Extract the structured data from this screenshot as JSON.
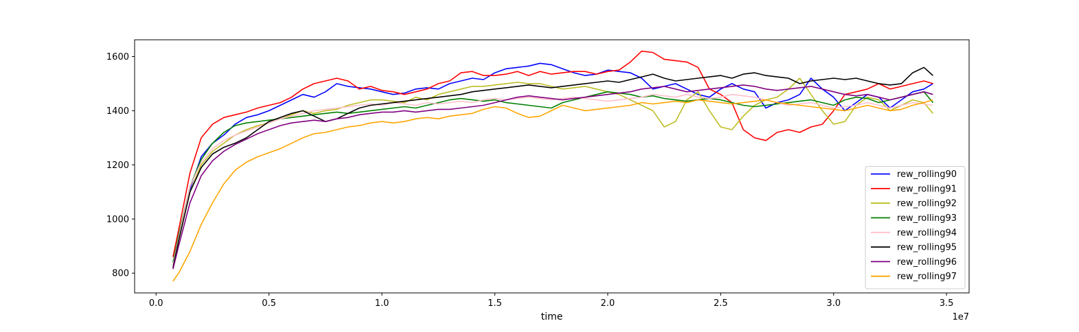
{
  "chart_data": {
    "type": "line",
    "xlabel": "time",
    "ylabel": "",
    "x_offset_label": "1e7",
    "x_scale": 10000000,
    "xlim": [
      -0.095,
      3.6
    ],
    "ylim": [
      727,
      1662
    ],
    "x_ticks": [
      0.0,
      0.5,
      1.0,
      1.5,
      2.0,
      2.5,
      3.0,
      3.5
    ],
    "x_tick_labels": [
      "0.0",
      "0.5",
      "1.0",
      "1.5",
      "2.0",
      "2.5",
      "3.0",
      "3.5"
    ],
    "y_ticks": [
      800,
      1000,
      1200,
      1400,
      1600
    ],
    "y_tick_labels": [
      "800",
      "1000",
      "1200",
      "1400",
      "1600"
    ],
    "grid": false,
    "legend_position": "lower-right",
    "series": [
      {
        "name": "rew_rolling90",
        "color": "#0000ff",
        "x": [
          0.075,
          0.1,
          0.15,
          0.2,
          0.25,
          0.3,
          0.35,
          0.4,
          0.45,
          0.5,
          0.55,
          0.6,
          0.65,
          0.7,
          0.75,
          0.8,
          0.85,
          0.9,
          0.95,
          1.0,
          1.05,
          1.1,
          1.15,
          1.2,
          1.25,
          1.3,
          1.35,
          1.4,
          1.45,
          1.5,
          1.55,
          1.6,
          1.65,
          1.7,
          1.75,
          1.8,
          1.85,
          1.9,
          1.95,
          2.0,
          2.05,
          2.1,
          2.15,
          2.2,
          2.25,
          2.3,
          2.35,
          2.4,
          2.45,
          2.5,
          2.55,
          2.6,
          2.65,
          2.7,
          2.75,
          2.8,
          2.85,
          2.9,
          2.95,
          3.0,
          3.05,
          3.1,
          3.15,
          3.2,
          3.25,
          3.3,
          3.35,
          3.4,
          3.44
        ],
        "y": [
          830,
          930,
          1110,
          1230,
          1280,
          1310,
          1350,
          1375,
          1385,
          1400,
          1420,
          1440,
          1460,
          1450,
          1470,
          1500,
          1490,
          1485,
          1480,
          1470,
          1460,
          1465,
          1480,
          1485,
          1480,
          1500,
          1510,
          1520,
          1515,
          1540,
          1555,
          1560,
          1565,
          1575,
          1570,
          1555,
          1540,
          1530,
          1535,
          1550,
          1545,
          1540,
          1520,
          1480,
          1490,
          1500,
          1480,
          1460,
          1450,
          1480,
          1500,
          1480,
          1470,
          1410,
          1430,
          1440,
          1460,
          1520,
          1480,
          1450,
          1400,
          1430,
          1460,
          1450,
          1410,
          1440,
          1470,
          1480,
          1500
        ]
      },
      {
        "name": "rew_rolling91",
        "color": "#ff0000",
        "x": [
          0.075,
          0.1,
          0.15,
          0.2,
          0.25,
          0.3,
          0.35,
          0.4,
          0.45,
          0.5,
          0.55,
          0.6,
          0.65,
          0.7,
          0.75,
          0.8,
          0.85,
          0.9,
          0.95,
          1.0,
          1.05,
          1.1,
          1.15,
          1.2,
          1.25,
          1.3,
          1.35,
          1.4,
          1.45,
          1.5,
          1.55,
          1.6,
          1.65,
          1.7,
          1.75,
          1.8,
          1.85,
          1.9,
          1.95,
          2.0,
          2.05,
          2.1,
          2.15,
          2.2,
          2.25,
          2.3,
          2.35,
          2.4,
          2.45,
          2.5,
          2.55,
          2.6,
          2.65,
          2.7,
          2.75,
          2.8,
          2.85,
          2.9,
          2.95,
          3.0,
          3.05,
          3.1,
          3.15,
          3.2,
          3.25,
          3.3,
          3.35,
          3.4,
          3.44
        ],
        "y": [
          860,
          960,
          1170,
          1300,
          1350,
          1375,
          1385,
          1395,
          1410,
          1420,
          1430,
          1450,
          1480,
          1500,
          1510,
          1520,
          1510,
          1480,
          1490,
          1475,
          1470,
          1460,
          1470,
          1480,
          1500,
          1510,
          1540,
          1545,
          1530,
          1530,
          1535,
          1545,
          1530,
          1545,
          1535,
          1540,
          1545,
          1545,
          1535,
          1545,
          1550,
          1580,
          1620,
          1615,
          1590,
          1585,
          1580,
          1560,
          1480,
          1460,
          1430,
          1330,
          1300,
          1290,
          1320,
          1330,
          1320,
          1340,
          1350,
          1400,
          1460,
          1470,
          1480,
          1500,
          1480,
          1490,
          1500,
          1510,
          1500
        ]
      },
      {
        "name": "rew_rolling92",
        "color": "#bcbd22",
        "x": [
          0.075,
          0.1,
          0.15,
          0.2,
          0.25,
          0.3,
          0.35,
          0.4,
          0.45,
          0.5,
          0.55,
          0.6,
          0.65,
          0.7,
          0.75,
          0.8,
          0.85,
          0.9,
          0.95,
          1.0,
          1.05,
          1.1,
          1.15,
          1.2,
          1.25,
          1.3,
          1.35,
          1.4,
          1.45,
          1.5,
          1.55,
          1.6,
          1.65,
          1.7,
          1.75,
          1.8,
          1.85,
          1.9,
          1.95,
          2.0,
          2.05,
          2.1,
          2.15,
          2.2,
          2.25,
          2.3,
          2.35,
          2.4,
          2.45,
          2.5,
          2.55,
          2.6,
          2.65,
          2.7,
          2.75,
          2.8,
          2.85,
          2.9,
          2.95,
          3.0,
          3.05,
          3.1,
          3.15,
          3.2,
          3.25,
          3.3,
          3.35,
          3.4,
          3.44
        ],
        "y": [
          830,
          920,
          1100,
          1200,
          1250,
          1280,
          1310,
          1330,
          1345,
          1355,
          1370,
          1385,
          1400,
          1390,
          1400,
          1405,
          1420,
          1430,
          1440,
          1440,
          1435,
          1430,
          1450,
          1440,
          1460,
          1470,
          1480,
          1490,
          1490,
          1495,
          1500,
          1505,
          1500,
          1500,
          1490,
          1480,
          1485,
          1490,
          1480,
          1470,
          1460,
          1440,
          1420,
          1400,
          1340,
          1360,
          1440,
          1470,
          1400,
          1340,
          1330,
          1380,
          1420,
          1440,
          1450,
          1480,
          1520,
          1460,
          1400,
          1350,
          1360,
          1420,
          1450,
          1440,
          1400,
          1420,
          1440,
          1430,
          1390
        ]
      },
      {
        "name": "rew_rolling93",
        "color": "#008000",
        "x": [
          0.075,
          0.1,
          0.15,
          0.2,
          0.25,
          0.3,
          0.35,
          0.4,
          0.45,
          0.5,
          0.55,
          0.6,
          0.65,
          0.7,
          0.75,
          0.8,
          0.85,
          0.9,
          0.95,
          1.0,
          1.05,
          1.1,
          1.15,
          1.2,
          1.25,
          1.3,
          1.35,
          1.4,
          1.45,
          1.5,
          1.55,
          1.6,
          1.65,
          1.7,
          1.75,
          1.8,
          1.85,
          1.9,
          1.95,
          2.0,
          2.05,
          2.1,
          2.15,
          2.2,
          2.25,
          2.3,
          2.35,
          2.4,
          2.45,
          2.5,
          2.55,
          2.6,
          2.65,
          2.7,
          2.75,
          2.8,
          2.85,
          2.9,
          2.95,
          3.0,
          3.05,
          3.1,
          3.15,
          3.2,
          3.25,
          3.3,
          3.35,
          3.4,
          3.44
        ],
        "y": [
          840,
          940,
          1120,
          1220,
          1280,
          1320,
          1345,
          1355,
          1360,
          1365,
          1370,
          1375,
          1380,
          1385,
          1390,
          1395,
          1390,
          1395,
          1400,
          1405,
          1410,
          1415,
          1410,
          1420,
          1430,
          1440,
          1445,
          1440,
          1435,
          1440,
          1430,
          1425,
          1420,
          1415,
          1410,
          1430,
          1440,
          1450,
          1460,
          1470,
          1465,
          1460,
          1450,
          1455,
          1445,
          1440,
          1435,
          1440,
          1445,
          1440,
          1430,
          1420,
          1415,
          1420,
          1425,
          1430,
          1435,
          1440,
          1430,
          1420,
          1440,
          1450,
          1445,
          1430,
          1440,
          1450,
          1460,
          1470,
          1430
        ]
      },
      {
        "name": "rew_rolling94",
        "color": "#ffc0cb",
        "x": [
          0.075,
          0.1,
          0.15,
          0.2,
          0.25,
          0.3,
          0.35,
          0.4,
          0.45,
          0.5,
          0.55,
          0.6,
          0.65,
          0.7,
          0.75,
          0.8,
          0.85,
          0.9,
          0.95,
          1.0,
          1.05,
          1.1,
          1.15,
          1.2,
          1.25,
          1.3,
          1.35,
          1.4,
          1.45,
          1.5,
          1.55,
          1.6,
          1.65,
          1.7,
          1.75,
          1.8,
          1.85,
          1.9,
          1.95,
          2.0,
          2.05,
          2.1,
          2.15,
          2.2,
          2.25,
          2.3,
          2.35,
          2.4,
          2.45,
          2.5,
          2.55,
          2.6,
          2.65,
          2.7,
          2.75,
          2.8,
          2.85,
          2.9,
          2.95,
          3.0,
          3.05,
          3.1,
          3.15,
          3.2,
          3.25,
          3.3,
          3.35,
          3.4,
          3.44
        ],
        "y": [
          830,
          930,
          1120,
          1210,
          1260,
          1290,
          1310,
          1325,
          1340,
          1355,
          1370,
          1380,
          1390,
          1400,
          1405,
          1410,
          1415,
          1420,
          1425,
          1420,
          1430,
          1425,
          1420,
          1430,
          1425,
          1430,
          1435,
          1430,
          1440,
          1445,
          1440,
          1445,
          1450,
          1445,
          1440,
          1445,
          1450,
          1445,
          1440,
          1435,
          1440,
          1445,
          1450,
          1460,
          1455,
          1450,
          1460,
          1450,
          1445,
          1450,
          1460,
          1455,
          1450,
          1440,
          1430,
          1420,
          1425,
          1430,
          1420,
          1410,
          1415,
          1420,
          1430,
          1420,
          1410,
          1420,
          1430,
          1425,
          1420
        ]
      },
      {
        "name": "rew_rolling95",
        "color": "#000000",
        "x": [
          0.075,
          0.1,
          0.15,
          0.2,
          0.25,
          0.3,
          0.35,
          0.4,
          0.45,
          0.5,
          0.55,
          0.6,
          0.65,
          0.7,
          0.75,
          0.8,
          0.85,
          0.9,
          0.95,
          1.0,
          1.05,
          1.1,
          1.15,
          1.2,
          1.25,
          1.3,
          1.35,
          1.4,
          1.45,
          1.5,
          1.55,
          1.6,
          1.65,
          1.7,
          1.75,
          1.8,
          1.85,
          1.9,
          1.95,
          2.0,
          2.05,
          2.1,
          2.15,
          2.2,
          2.25,
          2.3,
          2.35,
          2.4,
          2.45,
          2.5,
          2.55,
          2.6,
          2.65,
          2.7,
          2.75,
          2.8,
          2.85,
          2.9,
          2.95,
          3.0,
          3.05,
          3.1,
          3.15,
          3.2,
          3.25,
          3.3,
          3.35,
          3.4,
          3.44
        ],
        "y": [
          820,
          920,
          1100,
          1190,
          1240,
          1265,
          1280,
          1300,
          1330,
          1360,
          1375,
          1390,
          1400,
          1380,
          1360,
          1370,
          1390,
          1410,
          1420,
          1425,
          1430,
          1435,
          1440,
          1445,
          1450,
          1455,
          1460,
          1470,
          1475,
          1480,
          1485,
          1490,
          1495,
          1490,
          1485,
          1490,
          1495,
          1500,
          1505,
          1510,
          1505,
          1515,
          1525,
          1535,
          1520,
          1510,
          1515,
          1520,
          1525,
          1530,
          1520,
          1535,
          1540,
          1530,
          1525,
          1520,
          1500,
          1510,
          1515,
          1520,
          1515,
          1520,
          1510,
          1500,
          1495,
          1500,
          1540,
          1560,
          1530
        ]
      },
      {
        "name": "rew_rolling96",
        "color": "#800080",
        "x": [
          0.075,
          0.1,
          0.15,
          0.2,
          0.25,
          0.3,
          0.35,
          0.4,
          0.45,
          0.5,
          0.55,
          0.6,
          0.65,
          0.7,
          0.75,
          0.8,
          0.85,
          0.9,
          0.95,
          1.0,
          1.05,
          1.1,
          1.15,
          1.2,
          1.25,
          1.3,
          1.35,
          1.4,
          1.45,
          1.5,
          1.55,
          1.6,
          1.65,
          1.7,
          1.75,
          1.8,
          1.85,
          1.9,
          1.95,
          2.0,
          2.05,
          2.1,
          2.15,
          2.2,
          2.25,
          2.3,
          2.35,
          2.4,
          2.45,
          2.5,
          2.55,
          2.6,
          2.65,
          2.7,
          2.75,
          2.8,
          2.85,
          2.9,
          2.95,
          3.0,
          3.05,
          3.1,
          3.15,
          3.2,
          3.25,
          3.3,
          3.35,
          3.4,
          3.44
        ],
        "y": [
          815,
          900,
          1060,
          1160,
          1215,
          1250,
          1275,
          1295,
          1315,
          1330,
          1345,
          1355,
          1360,
          1365,
          1360,
          1370,
          1375,
          1385,
          1390,
          1395,
          1395,
          1400,
          1395,
          1400,
          1405,
          1405,
          1410,
          1415,
          1420,
          1430,
          1440,
          1450,
          1455,
          1450,
          1445,
          1440,
          1445,
          1450,
          1455,
          1460,
          1465,
          1470,
          1480,
          1485,
          1490,
          1480,
          1470,
          1475,
          1480,
          1485,
          1490,
          1495,
          1490,
          1480,
          1475,
          1480,
          1485,
          1490,
          1480,
          1470,
          1460,
          1455,
          1460,
          1450,
          1440,
          1450,
          1460,
          1470,
          1460
        ]
      },
      {
        "name": "rew_rolling97",
        "color": "#ffa500",
        "x": [
          0.075,
          0.1,
          0.15,
          0.2,
          0.25,
          0.3,
          0.35,
          0.4,
          0.45,
          0.5,
          0.55,
          0.6,
          0.65,
          0.7,
          0.75,
          0.8,
          0.85,
          0.9,
          0.95,
          1.0,
          1.05,
          1.1,
          1.15,
          1.2,
          1.25,
          1.3,
          1.35,
          1.4,
          1.45,
          1.5,
          1.55,
          1.6,
          1.65,
          1.7,
          1.75,
          1.8,
          1.85,
          1.9,
          1.95,
          2.0,
          2.05,
          2.1,
          2.15,
          2.2,
          2.25,
          2.3,
          2.35,
          2.4,
          2.45,
          2.5,
          2.55,
          2.6,
          2.65,
          2.7,
          2.75,
          2.8,
          2.85,
          2.9,
          2.95,
          3.0,
          3.05,
          3.1,
          3.15,
          3.2,
          3.25,
          3.3,
          3.35,
          3.4,
          3.44
        ],
        "y": [
          770,
          800,
          880,
          980,
          1060,
          1130,
          1180,
          1210,
          1230,
          1245,
          1260,
          1280,
          1300,
          1315,
          1320,
          1330,
          1340,
          1345,
          1355,
          1360,
          1355,
          1360,
          1370,
          1375,
          1370,
          1380,
          1385,
          1390,
          1405,
          1415,
          1410,
          1390,
          1375,
          1380,
          1400,
          1420,
          1410,
          1400,
          1405,
          1410,
          1415,
          1420,
          1430,
          1425,
          1430,
          1435,
          1430,
          1440,
          1435,
          1430,
          1425,
          1430,
          1435,
          1440,
          1430,
          1425,
          1420,
          1415,
          1410,
          1405,
          1400,
          1410,
          1420,
          1410,
          1400,
          1405,
          1420,
          1430,
          1440
        ]
      }
    ]
  }
}
